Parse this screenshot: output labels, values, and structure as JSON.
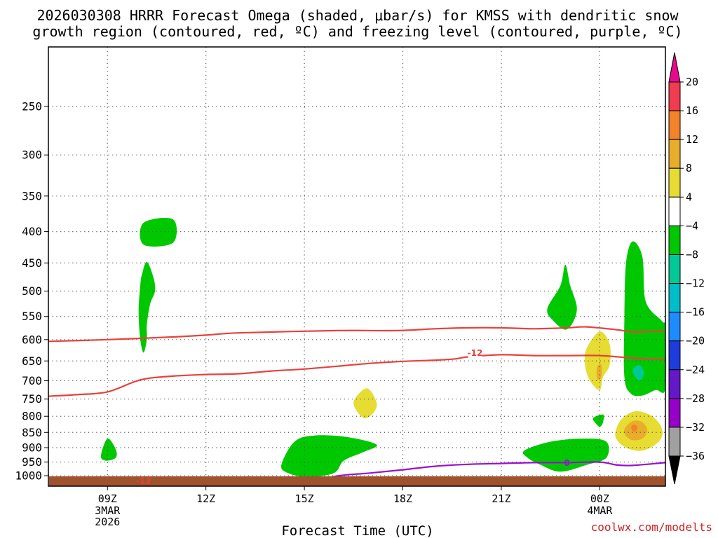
{
  "title": {
    "line1": "2026030308 HRRR Forecast Omega (shaded, μbar/s) for KMSS with dendritic snow",
    "line2": "growth region (contoured, red, ºC) and freezing level (contoured, purple, ºC)"
  },
  "credit": "coolwx.com/modelts",
  "chart_data": {
    "type": "contour",
    "xlabel": "Forecast Time (UTC)",
    "ylabel": "",
    "x_range_hours": [
      7.2,
      26.0
    ],
    "y_range_hpa": [
      1040,
      200
    ],
    "y_scale": "log",
    "grid": true,
    "x_ticks": [
      {
        "hour": 9,
        "label": "09Z",
        "sub": [
          "3MAR",
          "2026"
        ]
      },
      {
        "hour": 12,
        "label": "12Z",
        "sub": []
      },
      {
        "hour": 15,
        "label": "15Z",
        "sub": []
      },
      {
        "hour": 18,
        "label": "18Z",
        "sub": []
      },
      {
        "hour": 21,
        "label": "21Z",
        "sub": []
      },
      {
        "hour": 24,
        "label": "00Z",
        "sub": [
          "4MAR"
        ]
      }
    ],
    "y_ticks": [
      250,
      300,
      350,
      400,
      450,
      500,
      550,
      600,
      650,
      700,
      750,
      800,
      850,
      900,
      950,
      1000
    ],
    "colorbar": {
      "levels": [
        20,
        16,
        12,
        8,
        4,
        -4,
        -8,
        -12,
        -16,
        -20,
        -24,
        -28,
        -32,
        -36
      ],
      "colors": [
        "#f03c50",
        "#f4822a",
        "#e8ad2a",
        "#e6dc32",
        "#ffffff",
        "#00c800",
        "#00c896",
        "#00bec8",
        "#1e8cff",
        "#1e3cdc",
        "#6419c8",
        "#9600c8",
        "#a0a0a0"
      ],
      "top_arrow_color": "#e60a8c",
      "bottom_arrow_color": "#000000"
    },
    "ground_color": "#a0522d",
    "contours": [
      {
        "name": "dgz-upper",
        "color": "#e8413c",
        "label": "",
        "points": [
          [
            7.2,
            604
          ],
          [
            9,
            600
          ],
          [
            11,
            594
          ],
          [
            12,
            590
          ],
          [
            13,
            585
          ],
          [
            16,
            580
          ],
          [
            17.8,
            580
          ],
          [
            19,
            576
          ],
          [
            20,
            574
          ],
          [
            21,
            574
          ],
          [
            22,
            576
          ],
          [
            23,
            574
          ],
          [
            23.6,
            572
          ],
          [
            24.5,
            578
          ],
          [
            25,
            583
          ],
          [
            25.5,
            582
          ],
          [
            26,
            582
          ]
        ]
      },
      {
        "name": "dgz-lower",
        "color": "#e8413c",
        "label": "-12",
        "label_at": [
          20.2,
          630
        ],
        "points": [
          [
            7.2,
            742
          ],
          [
            8,
            738
          ],
          [
            9,
            730
          ],
          [
            10,
            698
          ],
          [
            11,
            688
          ],
          [
            12,
            684
          ],
          [
            13,
            682
          ],
          [
            14,
            675
          ],
          [
            15,
            670
          ],
          [
            16,
            663
          ],
          [
            17,
            656
          ],
          [
            18,
            651
          ],
          [
            19,
            648
          ],
          [
            19.6,
            645
          ],
          [
            20,
            640
          ],
          [
            21,
            635
          ],
          [
            22,
            637
          ],
          [
            23,
            637
          ],
          [
            24,
            637
          ],
          [
            25,
            643
          ],
          [
            26,
            647
          ]
        ]
      },
      {
        "name": "dgz-surface",
        "color": "#e8413c",
        "label": "-12",
        "label_at": [
          10.1,
          1019
        ],
        "points": [
          [
            9.2,
            1021
          ],
          [
            10,
            1019
          ],
          [
            11,
            1019
          ],
          [
            12,
            1018
          ],
          [
            13,
            1020
          ]
        ]
      },
      {
        "name": "freezing-level",
        "color": "#9a10d0",
        "label": "0",
        "label_at": [
          23.0,
          952
        ],
        "points": [
          [
            15.2,
            1028
          ],
          [
            16,
            1001
          ],
          [
            17,
            990
          ],
          [
            18,
            978
          ],
          [
            19,
            965
          ],
          [
            20,
            958
          ],
          [
            21,
            955
          ],
          [
            22,
            952
          ],
          [
            23,
            952
          ],
          [
            24,
            950
          ],
          [
            24.5,
            960
          ],
          [
            25,
            962
          ],
          [
            26,
            952
          ]
        ]
      }
    ],
    "omega_regions": [
      {
        "name": "omega-green-400",
        "value": -6,
        "color": "#00c800",
        "points": [
          [
            10.1,
            387
          ],
          [
            11.0,
            382
          ],
          [
            11.0,
            417
          ],
          [
            10.1,
            420
          ]
        ]
      },
      {
        "name": "omega-green-500",
        "value": -6,
        "color": "#00c800",
        "points": [
          [
            10.05,
            470
          ],
          [
            10.2,
            448
          ],
          [
            10.4,
            475
          ],
          [
            10.45,
            500
          ],
          [
            10.3,
            525
          ],
          [
            10.2,
            568
          ],
          [
            10.2,
            600
          ],
          [
            10.1,
            630
          ],
          [
            10.0,
            600
          ],
          [
            9.95,
            540
          ],
          [
            10.0,
            490
          ]
        ]
      },
      {
        "name": "omega-green-910",
        "value": -6,
        "color": "#00c800",
        "points": [
          [
            8.8,
            928
          ],
          [
            9.0,
            870
          ],
          [
            9.25,
            905
          ],
          [
            9.25,
            935
          ],
          [
            8.95,
            945
          ]
        ]
      },
      {
        "name": "omega-green-930",
        "value": -6,
        "color": "#00c800",
        "points": [
          [
            14.3,
            960
          ],
          [
            14.7,
            880
          ],
          [
            15.3,
            860
          ],
          [
            16.3,
            865
          ],
          [
            17.2,
            890
          ],
          [
            16.8,
            915
          ],
          [
            16.2,
            945
          ],
          [
            15.9,
            990
          ],
          [
            15.1,
            1005
          ],
          [
            14.5,
            990
          ]
        ]
      },
      {
        "name": "omega-yellow-760",
        "value": 5,
        "color": "#e6dc32",
        "points": [
          [
            16.5,
            760
          ],
          [
            16.9,
            720
          ],
          [
            17.2,
            760
          ],
          [
            17.1,
            790
          ],
          [
            16.8,
            805
          ]
        ]
      },
      {
        "name": "omega-green-525",
        "value": -6,
        "color": "#00c800",
        "points": [
          [
            22.4,
            535
          ],
          [
            22.8,
            490
          ],
          [
            22.95,
            453
          ],
          [
            23.1,
            490
          ],
          [
            23.3,
            530
          ],
          [
            23.2,
            560
          ],
          [
            22.95,
            578
          ],
          [
            22.6,
            560
          ]
        ]
      },
      {
        "name": "omega-green-935",
        "value": -6,
        "color": "#00c800",
        "points": [
          [
            21.7,
            910
          ],
          [
            22.5,
            880
          ],
          [
            23.5,
            870
          ],
          [
            24.2,
            880
          ],
          [
            24.2,
            935
          ],
          [
            23.6,
            960
          ],
          [
            22.8,
            985
          ],
          [
            22.2,
            960
          ],
          [
            21.8,
            935
          ]
        ]
      },
      {
        "name": "omega-green-810",
        "value": -6,
        "color": "#00c800",
        "points": [
          [
            23.8,
            805
          ],
          [
            24.1,
            795
          ],
          [
            24.1,
            818
          ],
          [
            24.0,
            832
          ],
          [
            23.85,
            818
          ]
        ]
      },
      {
        "name": "omega-yellow-650",
        "value": 5,
        "color": "#e6dc32",
        "points": [
          [
            23.6,
            620
          ],
          [
            24.0,
            582
          ],
          [
            24.3,
            610
          ],
          [
            24.3,
            660
          ],
          [
            24.1,
            690
          ],
          [
            24.0,
            725
          ],
          [
            23.7,
            700
          ],
          [
            23.55,
            660
          ]
        ]
      },
      {
        "name": "omega-orange-670",
        "value": 9,
        "color": "#e8ad2a",
        "points": [
          [
            23.92,
            665
          ],
          [
            24.05,
            660
          ],
          [
            24.05,
            690
          ],
          [
            23.92,
            695
          ]
        ]
      },
      {
        "name": "omega-green-580",
        "value": -6,
        "color": "#00c800",
        "points": [
          [
            24.8,
            450
          ],
          [
            25.0,
            415
          ],
          [
            25.3,
            440
          ],
          [
            25.4,
            520
          ],
          [
            25.9,
            560
          ],
          [
            26.0,
            575
          ],
          [
            26.0,
            720
          ],
          [
            25.7,
            725
          ],
          [
            25.3,
            740
          ],
          [
            24.95,
            735
          ],
          [
            24.75,
            690
          ],
          [
            24.75,
            550
          ]
        ]
      },
      {
        "name": "omega-teal-675",
        "value": -10,
        "color": "#00c896",
        "points": [
          [
            25.0,
            675
          ],
          [
            25.2,
            660
          ],
          [
            25.35,
            680
          ],
          [
            25.2,
            700
          ]
        ]
      },
      {
        "name": "omega-yellow-840",
        "value": 6,
        "color": "#e6dc32",
        "points": [
          [
            24.5,
            840
          ],
          [
            24.7,
            805
          ],
          [
            25.1,
            785
          ],
          [
            25.6,
            800
          ],
          [
            25.9,
            840
          ],
          [
            25.8,
            880
          ],
          [
            25.3,
            910
          ],
          [
            24.8,
            900
          ],
          [
            24.5,
            870
          ]
        ]
      },
      {
        "name": "omega-orange-840",
        "value": 10,
        "color": "#e8ad2a",
        "points": [
          [
            24.75,
            840
          ],
          [
            25.0,
            815
          ],
          [
            25.3,
            818
          ],
          [
            25.45,
            845
          ],
          [
            25.3,
            870
          ],
          [
            25.0,
            875
          ],
          [
            24.8,
            862
          ]
        ]
      },
      {
        "name": "omega-red-835",
        "value": 13,
        "color": "#f4822a",
        "points": [
          [
            24.95,
            835
          ],
          [
            25.05,
            825
          ],
          [
            25.15,
            835
          ],
          [
            25.05,
            848
          ]
        ]
      }
    ]
  }
}
